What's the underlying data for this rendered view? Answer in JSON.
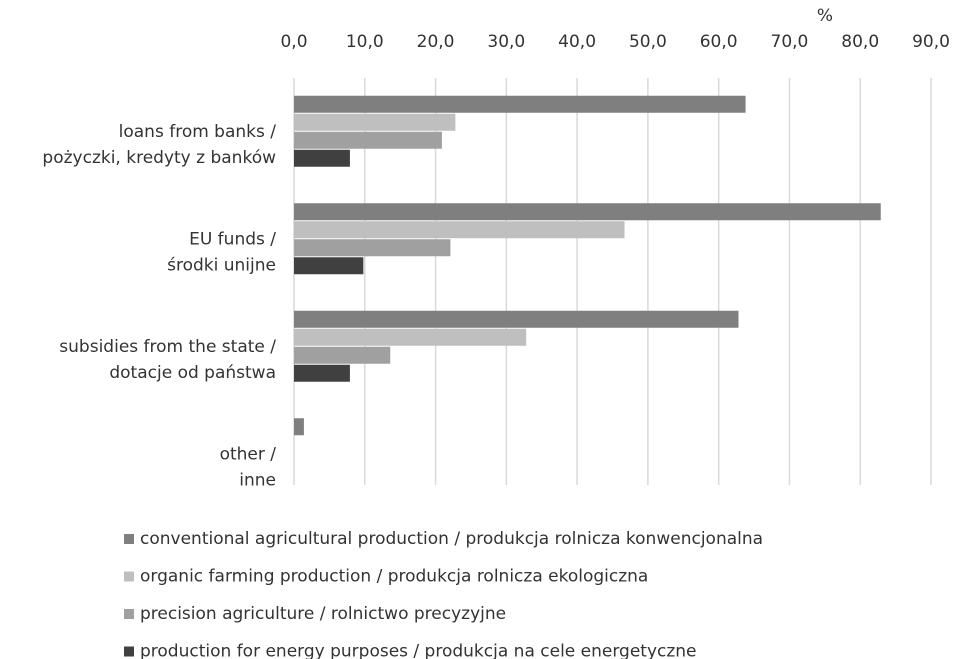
{
  "chart_data": {
    "type": "barh",
    "axis_label": "%",
    "categories": [
      [
        "loans from banks /",
        "pożyczki, kredyty z banków"
      ],
      [
        "EU funds /",
        "środki unijne"
      ],
      [
        "subsidies from the state /",
        "dotacje od państwa"
      ],
      [
        "other /",
        "inne"
      ]
    ],
    "series": [
      {
        "name": "conventional agricultural production / produkcja rolnicza konwencjonalna",
        "color": "#7f7f7f",
        "values": [
          63.8,
          82.9,
          62.8,
          1.4
        ]
      },
      {
        "name": "organic farming production / produkcja rolnicza ekologiczna",
        "color": "#bfbfbf",
        "values": [
          22.8,
          46.7,
          32.8,
          0
        ]
      },
      {
        "name": "precision agriculture / rolnictwo precyzyjne",
        "color": "#a0a0a0",
        "values": [
          20.9,
          22.1,
          13.6,
          0
        ]
      },
      {
        "name": "production for energy purposes / produkcja na cele energetyczne",
        "color": "#404040",
        "values": [
          7.9,
          9.8,
          7.9,
          0
        ]
      }
    ],
    "xlim": [
      0,
      90
    ],
    "xticks": [
      {
        "value": 0,
        "label": "0,0"
      },
      {
        "value": 10,
        "label": "10,0"
      },
      {
        "value": 20,
        "label": "20,0"
      },
      {
        "value": 30,
        "label": "30,0"
      },
      {
        "value": 40,
        "label": "40,0"
      },
      {
        "value": 50,
        "label": "50,0"
      },
      {
        "value": 60,
        "label": "60,0"
      },
      {
        "value": 70,
        "label": "70,0"
      },
      {
        "value": 80,
        "label": "80,0"
      },
      {
        "value": 90,
        "label": "90,0"
      }
    ],
    "grid": true
  }
}
